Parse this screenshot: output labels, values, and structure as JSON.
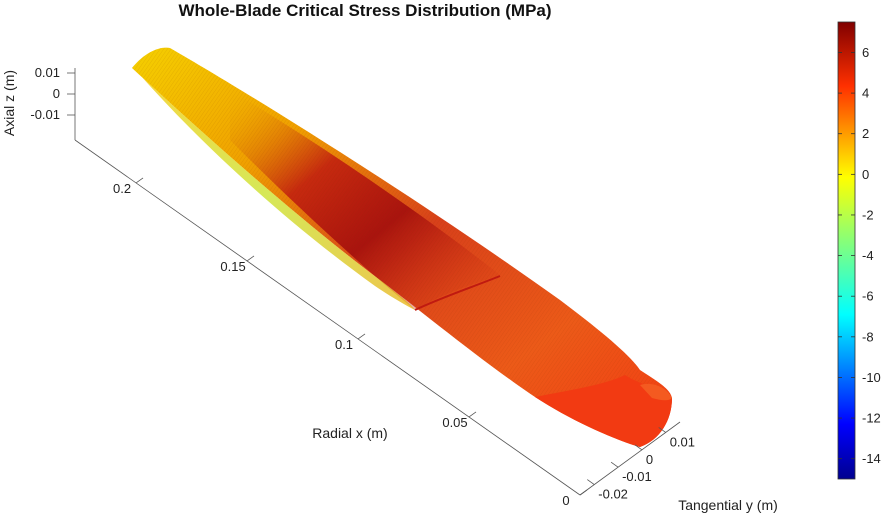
{
  "chart_data": {
    "type": "surface3d",
    "title": "Whole-Blade Critical Stress Distribution (MPa)",
    "xlabel": "Radial x (m)",
    "ylabel": "Tangential y (m)",
    "zlabel": "Axial z (m)",
    "x_ticks": [
      "0",
      "0.05",
      "0.1",
      "0.15",
      "0.2"
    ],
    "y_ticks": [
      "-0.02",
      "-0.01",
      "0",
      "0.01"
    ],
    "z_ticks": [
      "0.01",
      "0",
      "-0.01"
    ],
    "colorbar": {
      "label": "",
      "range": [
        -15,
        7.5
      ],
      "ticks": [
        "6",
        "4",
        "2",
        "0",
        "-2",
        "-4",
        "-6",
        "-8",
        "-10",
        "-12",
        "-14"
      ],
      "colormap": "jet"
    },
    "surface_colors": {
      "tip": "#f5c400",
      "mid_ridge": "#b01010",
      "mid": "#e8501a",
      "root": "#f23a12",
      "edge_low": "#c8e020"
    }
  }
}
